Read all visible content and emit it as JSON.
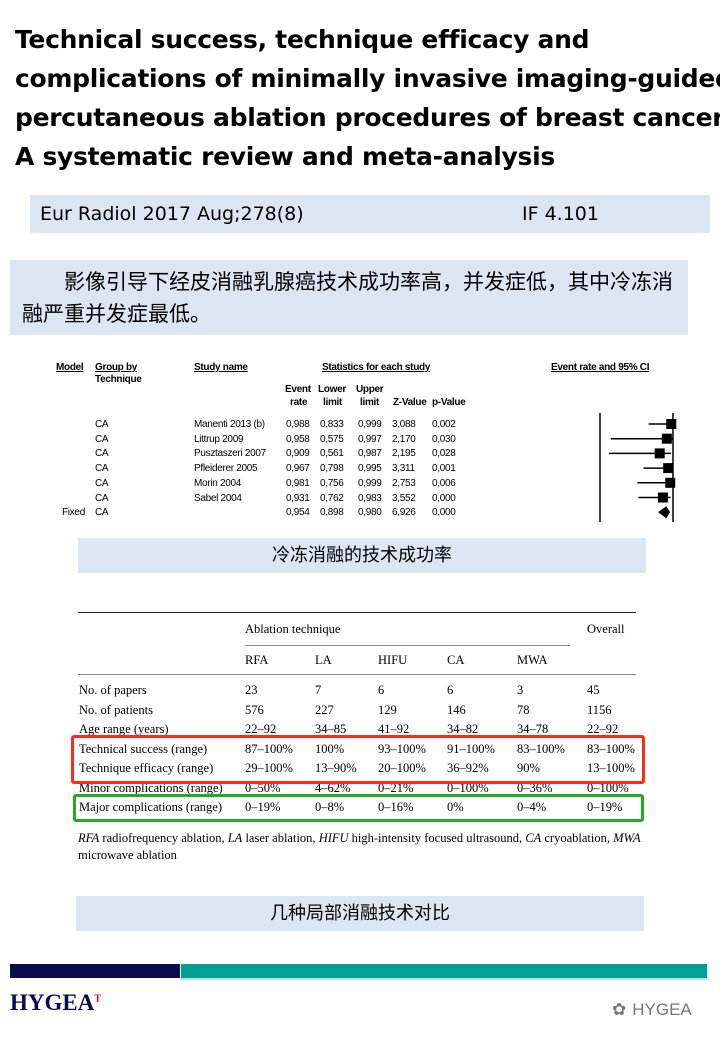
{
  "title_lines": [
    "Technical success, technique efficacy and",
    "complications of minimally invasive imaging-guided",
    "percutaneous ablation procedures of breast cancer:",
    "A systematic review and meta-analysis"
  ],
  "citation": {
    "journal": "Eur Radiol 2017 Aug;278(8)",
    "impact_factor": "IF 4.101"
  },
  "summary_cn": "影像引导下经皮消融乳腺癌技术成功率高，并发症低，其中冷冻消融严重并发症最低。",
  "forest": {
    "headers": {
      "model": "Model",
      "group": "Group by",
      "group2": "Technique",
      "study": "Study name",
      "stats": "Statistics for each study",
      "event": "Event",
      "event2": "rate",
      "lower": "Lower",
      "lower2": "limit",
      "upper": "Upper",
      "upper2": "limit",
      "z": "Z-Value",
      "p": "p-Value",
      "ci": "Event rate and 95% CI"
    },
    "rows": [
      {
        "model": "",
        "group": "CA",
        "study": "Manenti 2013 (b)",
        "event": "0,988",
        "lower": "0,833",
        "upper": "0,999",
        "z": "3,088",
        "p": "0,002"
      },
      {
        "model": "",
        "group": "CA",
        "study": "Littrup 2009",
        "event": "0,958",
        "lower": "0,575",
        "upper": "0,997",
        "z": "2,170",
        "p": "0,030"
      },
      {
        "model": "",
        "group": "CA",
        "study": "Pusztaszeri 2007",
        "event": "0,909",
        "lower": "0,561",
        "upper": "0,987",
        "z": "2,195",
        "p": "0,028"
      },
      {
        "model": "",
        "group": "CA",
        "study": "Pfleiderer 2005",
        "event": "0,967",
        "lower": "0,798",
        "upper": "0,995",
        "z": "3,311",
        "p": "0,001"
      },
      {
        "model": "",
        "group": "CA",
        "study": "Morin 2004",
        "event": "0,981",
        "lower": "0,756",
        "upper": "0,999",
        "z": "2,753",
        "p": "0,006"
      },
      {
        "model": "",
        "group": "CA",
        "study": "Sabel 2004",
        "event": "0,931",
        "lower": "0,762",
        "upper": "0,983",
        "z": "3,552",
        "p": "0,000"
      },
      {
        "model": "Fixed",
        "group": "CA",
        "study": "",
        "event": "0,954",
        "lower": "0,898",
        "upper": "0,980",
        "z": "6,926",
        "p": "0,000"
      }
    ]
  },
  "caption1": "冷冻消融的技术成功率",
  "table": {
    "group_header": "Ablation technique",
    "overall": "Overall",
    "columns": [
      "RFA",
      "LA",
      "HIFU",
      "CA",
      "MWA"
    ],
    "rows": [
      {
        "label": "No. of papers",
        "values": [
          "23",
          "7",
          "6",
          "6",
          "3",
          "45"
        ]
      },
      {
        "label": "No. of patients",
        "values": [
          "576",
          "227",
          "129",
          "146",
          "78",
          "1156"
        ]
      },
      {
        "label": "Age range (years)",
        "values": [
          "22–92",
          "34–85",
          "41–92",
          "34–82",
          "34–78",
          "22–92"
        ]
      },
      {
        "label": "Technical success (range)",
        "values": [
          "87–100%",
          "100%",
          "93–100%",
          "91–100%",
          "83–100%",
          "83–100%"
        ]
      },
      {
        "label": "Technique efficacy (range)",
        "values": [
          "29–100%",
          "13–90%",
          "20–100%",
          "36–92%",
          "90%",
          "13–100%"
        ]
      },
      {
        "label": "Minor complications (range)",
        "values": [
          "0–50%",
          "4–62%",
          "0–21%",
          "0–100%",
          "0–36%",
          "0–100%"
        ]
      },
      {
        "label": "Major complications (range)",
        "values": [
          "0–19%",
          "0–8%",
          "0–16%",
          "0%",
          "0–4%",
          "0–19%"
        ]
      }
    ],
    "footnote_parts": [
      {
        "abbr": "RFA",
        "text": " radiofrequency ablation, "
      },
      {
        "abbr": "LA",
        "text": " laser ablation, "
      },
      {
        "abbr": "HIFU",
        "text": " high-intensity focused ultrasound, "
      },
      {
        "abbr": "CA",
        "text": " cryoablation, "
      },
      {
        "abbr": "MWA",
        "text": " microwave ablation"
      }
    ],
    "highlight_colors": {
      "red": "#ff2a1a",
      "green": "#22aa22"
    }
  },
  "caption2": "几种局部消融技术对比",
  "footer": {
    "logo": "HYGEA",
    "watermark": "HYGEA",
    "bar_colors": [
      "#0b0b4f",
      "#009e96"
    ]
  }
}
